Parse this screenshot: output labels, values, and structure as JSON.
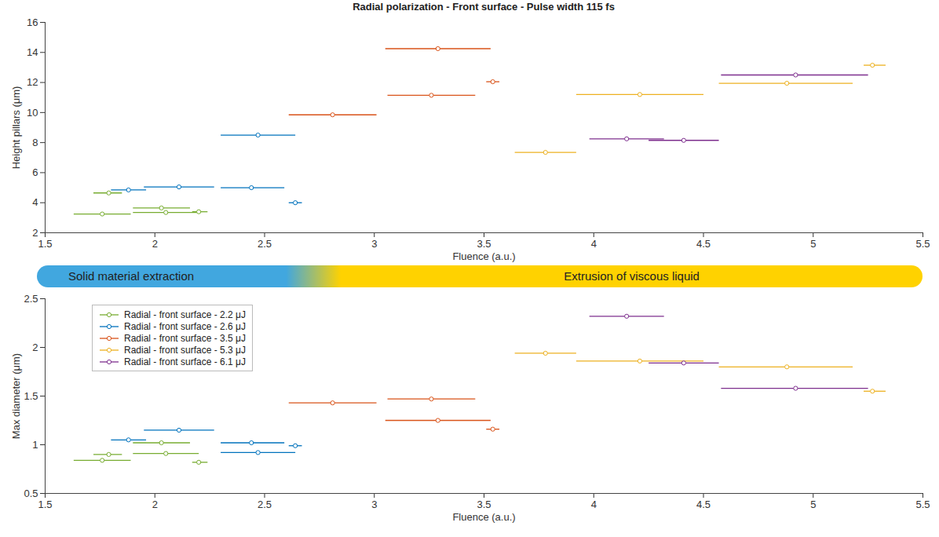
{
  "chart_data": [
    {
      "type": "scatter",
      "title": "Radial polarization - Front surface - Pulse width 115 fs",
      "x_label": "Fluence (a.u.)",
      "y_label": "Height pillars (μm)",
      "xlim": [
        1.5,
        5.5
      ],
      "xticks": [
        1.5,
        2,
        2.5,
        3,
        3.5,
        4,
        4.5,
        5,
        5.5
      ],
      "ylim": [
        2,
        16
      ],
      "yticks": [
        2,
        4,
        6,
        8,
        10,
        12,
        14,
        16
      ],
      "grid": false,
      "series": [
        {
          "color": "#77ac30",
          "marker": "circle",
          "x": [
            1.79,
            1.76,
            2.03,
            2.05,
            2.2
          ],
          "y": [
            4.65,
            3.25,
            3.65,
            3.35,
            3.4
          ],
          "x_lower": [
            1.72,
            1.63,
            1.9,
            1.9,
            2.17
          ],
          "x_upper": [
            1.85,
            1.89,
            2.16,
            2.2,
            2.24
          ]
        },
        {
          "color": "#0072bd",
          "marker": "circle",
          "x": [
            1.88,
            2.11,
            2.44,
            2.47,
            2.64
          ],
          "y": [
            4.85,
            5.05,
            5.0,
            8.5,
            4.0
          ],
          "x_lower": [
            1.8,
            1.95,
            2.3,
            2.3,
            2.61
          ],
          "x_upper": [
            1.96,
            2.27,
            2.59,
            2.64,
            2.67
          ]
        },
        {
          "color": "#d95319",
          "marker": "circle",
          "x": [
            2.81,
            3.26,
            3.29,
            3.54
          ],
          "y": [
            9.85,
            11.15,
            14.25,
            12.05
          ],
          "x_lower": [
            2.61,
            3.06,
            3.05,
            3.51
          ],
          "x_upper": [
            3.01,
            3.46,
            3.53,
            3.57
          ]
        },
        {
          "color": "#edb120",
          "marker": "circle",
          "x": [
            3.78,
            4.21,
            4.88,
            5.27
          ],
          "y": [
            7.35,
            11.2,
            11.95,
            13.15
          ],
          "x_lower": [
            3.64,
            3.92,
            4.57,
            5.23
          ],
          "x_upper": [
            3.92,
            4.5,
            5.18,
            5.33
          ]
        },
        {
          "color": "#7e2f8e",
          "marker": "circle",
          "x": [
            4.15,
            4.41,
            4.92
          ],
          "y": [
            8.25,
            8.15,
            12.5
          ],
          "x_lower": [
            3.98,
            4.25,
            4.58
          ],
          "x_upper": [
            4.32,
            4.57,
            5.25
          ]
        }
      ]
    },
    {
      "type": "scatter",
      "x_label": "Fluence (a.u.)",
      "y_label": "Max diameter (μm)",
      "xlim": [
        1.5,
        5.5
      ],
      "xticks": [
        1.5,
        2,
        2.5,
        3,
        3.5,
        4,
        4.5,
        5,
        5.5
      ],
      "ylim": [
        0.5,
        2.5
      ],
      "yticks": [
        0.5,
        1,
        1.5,
        2,
        2.5
      ],
      "grid": false,
      "legend": "upper left",
      "series": [
        {
          "name": "Radial - front surface - 2.2 μJ",
          "color": "#77ac30",
          "marker": "circle",
          "x": [
            1.79,
            1.76,
            2.03,
            2.05,
            2.2
          ],
          "y": [
            0.9,
            0.84,
            1.02,
            0.91,
            0.82
          ],
          "x_lower": [
            1.72,
            1.63,
            1.9,
            1.9,
            2.17
          ],
          "x_upper": [
            1.85,
            1.89,
            2.16,
            2.2,
            2.24
          ]
        },
        {
          "name": "Radial - front surface - 2.6 μJ",
          "color": "#0072bd",
          "marker": "circle",
          "x": [
            1.88,
            2.11,
            2.44,
            2.47,
            2.64
          ],
          "y": [
            1.05,
            1.15,
            1.02,
            0.92,
            0.99
          ],
          "x_lower": [
            1.8,
            1.95,
            2.3,
            2.3,
            2.61
          ],
          "x_upper": [
            1.96,
            2.27,
            2.59,
            2.64,
            2.67
          ]
        },
        {
          "name": "Radial - front surface - 3.5 μJ",
          "color": "#d95319",
          "marker": "circle",
          "x": [
            2.81,
            3.26,
            3.29,
            3.54
          ],
          "y": [
            1.43,
            1.47,
            1.25,
            1.16
          ],
          "x_lower": [
            2.61,
            3.06,
            3.05,
            3.51
          ],
          "x_upper": [
            3.01,
            3.46,
            3.53,
            3.57
          ]
        },
        {
          "name": "Radial - front surface - 5.3 μJ",
          "color": "#edb120",
          "marker": "circle",
          "x": [
            3.78,
            4.21,
            4.88,
            5.27
          ],
          "y": [
            1.94,
            1.86,
            1.8,
            1.55
          ],
          "x_lower": [
            3.64,
            3.92,
            4.57,
            5.23
          ],
          "x_upper": [
            3.92,
            4.5,
            5.18,
            5.33
          ]
        },
        {
          "name": "Radial - front surface - 6.1 μJ",
          "color": "#7e2f8e",
          "marker": "circle",
          "x": [
            4.15,
            4.41,
            4.92
          ],
          "y": [
            2.32,
            1.84,
            1.58
          ],
          "x_lower": [
            3.98,
            4.25,
            4.58
          ],
          "x_upper": [
            4.32,
            4.57,
            5.25
          ]
        }
      ]
    }
  ],
  "regimes": [
    {
      "label": "Solid material extraction",
      "from": 1.5,
      "to": 2.6,
      "color": "#41a7df"
    },
    {
      "label": "Extrusion of viscous liquid",
      "from": 2.85,
      "to": 5.5,
      "color": "#ffd200"
    }
  ]
}
